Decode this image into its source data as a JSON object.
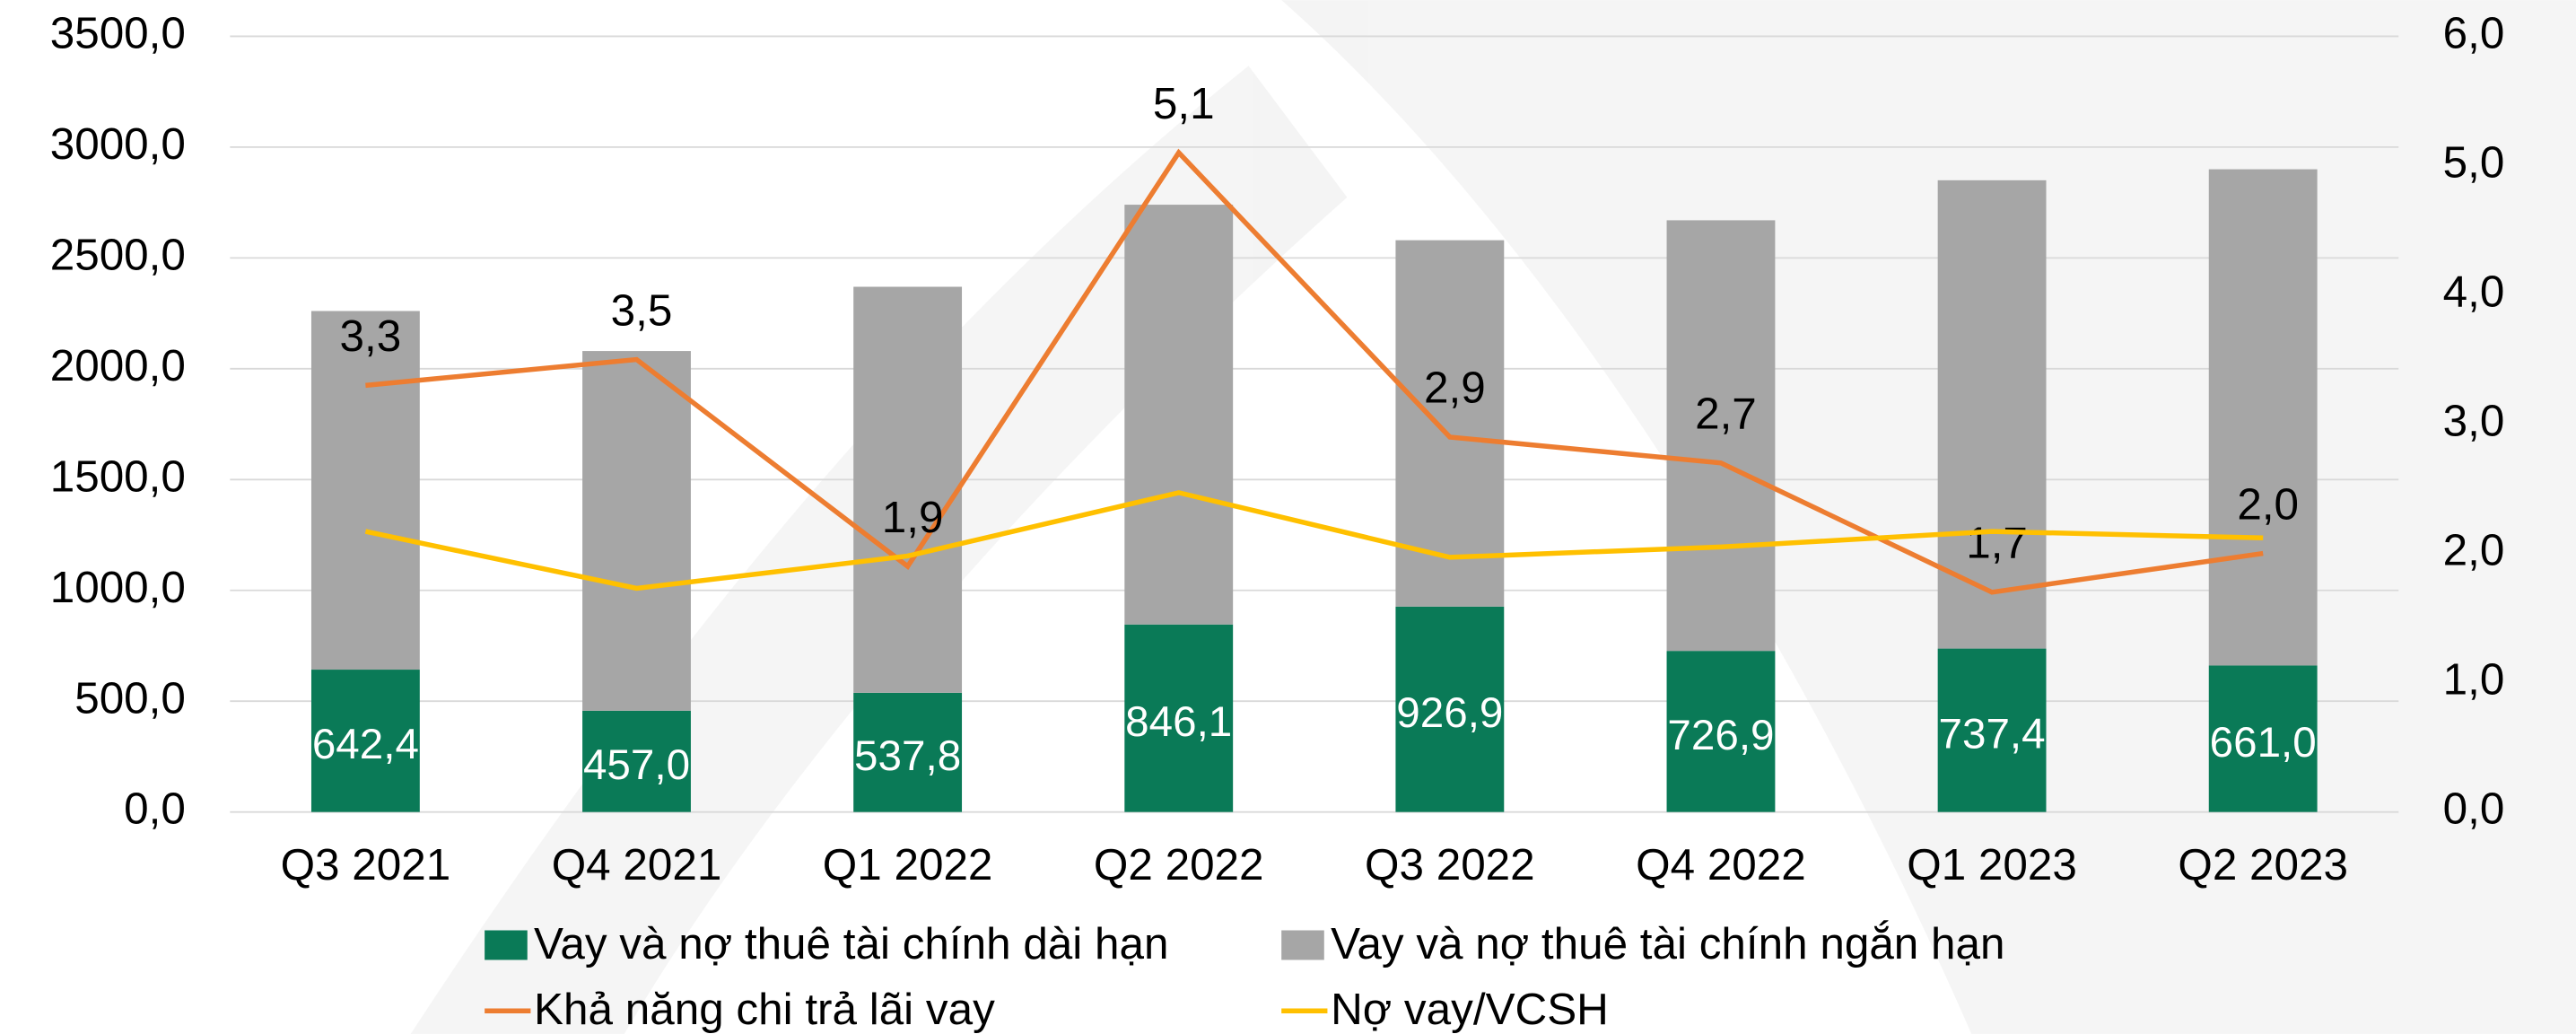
{
  "chart_data": {
    "type": "bar",
    "categories": [
      "Q3 2021",
      "Q4 2021",
      "Q1 2022",
      "Q2 2022",
      "Q3 2022",
      "Q4 2022",
      "Q1 2023",
      "Q2 2023"
    ],
    "series": [
      {
        "name": "Vay và nợ thuê tài chính dài hạn",
        "type": "bar",
        "color": "#0a7a57",
        "values": [
          642.4,
          457.0,
          537.8,
          846.1,
          926.9,
          726.9,
          737.4,
          661.0
        ],
        "value_labels": [
          "642,4",
          "457,0",
          "537,8",
          "846,1",
          "926,9",
          "726,9",
          "737,4",
          "661,0"
        ]
      },
      {
        "name": "Vay và nợ thuê tài chính ngắn hạn",
        "type": "bar",
        "color": "#a6a6a6",
        "values": [
          1618,
          1623,
          1832,
          1894,
          1653,
          1943,
          2113,
          2239
        ]
      },
      {
        "name": "Khả năng chi trả lãi vay",
        "type": "line",
        "axis": "y2",
        "color": "#ed7d31",
        "values": [
          3.3,
          3.5,
          1.9,
          5.1,
          2.9,
          2.7,
          1.7,
          2.0
        ],
        "value_labels": [
          "3,3",
          "3,5",
          "1,9",
          "5,1",
          "2,9",
          "2,7",
          "1,7",
          "2,0"
        ]
      },
      {
        "name": "Nợ vay/VCSH",
        "type": "line",
        "axis": "y2",
        "color": "#ffc000",
        "values": [
          2.17,
          1.73,
          1.98,
          2.47,
          1.97,
          2.05,
          2.17,
          2.12
        ]
      }
    ],
    "stacked": true,
    "ylim": [
      0,
      3500
    ],
    "yticks": [
      {
        "value": 0,
        "label": "0,0"
      },
      {
        "value": 500,
        "label": "500,0"
      },
      {
        "value": 1000,
        "label": "1000,0"
      },
      {
        "value": 1500,
        "label": "1500,0"
      },
      {
        "value": 2000,
        "label": "2000,0"
      },
      {
        "value": 2500,
        "label": "2500,0"
      },
      {
        "value": 3000,
        "label": "3000,0"
      },
      {
        "value": 3500,
        "label": "3500,0"
      }
    ],
    "y2lim": [
      0,
      6
    ],
    "y2ticks": [
      {
        "value": 0,
        "label": "0,0"
      },
      {
        "value": 1,
        "label": "1,0"
      },
      {
        "value": 2,
        "label": "2,0"
      },
      {
        "value": 3,
        "label": "3,0"
      },
      {
        "value": 4,
        "label": "4,0"
      },
      {
        "value": 5,
        "label": "5,0"
      },
      {
        "value": 6,
        "label": "6,0"
      }
    ],
    "grid": true,
    "legend": "bottom"
  }
}
